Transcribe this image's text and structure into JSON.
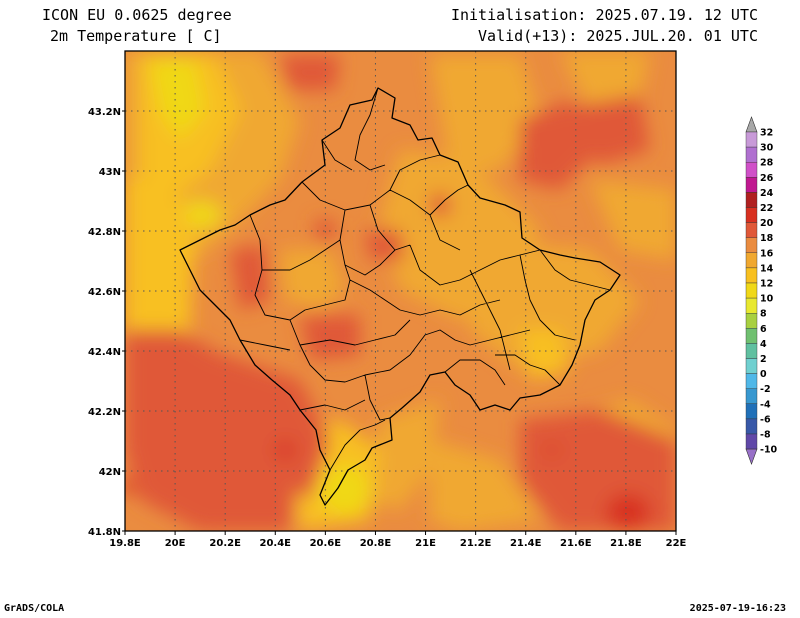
{
  "header": {
    "model": "ICON EU 0.0625 degree",
    "parameter": "2m Temperature [ C]",
    "init": "Initialisation: 2025.07.19. 12 UTC",
    "valid": "Valid(+13): 2025.JUL.20. 01 UTC"
  },
  "footer": {
    "credit": "GrADS/COLA",
    "timestamp": "2025-07-19-16:23"
  },
  "map": {
    "region": "Kosovo",
    "lon_range": [
      19.8,
      22.0
    ],
    "lat_range": [
      41.8,
      43.4
    ],
    "x_ticks": [
      "19.8E",
      "20E",
      "20.2E",
      "20.4E",
      "20.6E",
      "20.8E",
      "21E",
      "21.2E",
      "21.4E",
      "21.6E",
      "21.8E",
      "22E"
    ],
    "y_ticks": [
      "41.8N",
      "42N",
      "42.2N",
      "42.4N",
      "42.6N",
      "42.8N",
      "43N",
      "43.2N"
    ],
    "grid": "dotted"
  },
  "colorbar": {
    "labels": [
      "32",
      "30",
      "28",
      "26",
      "24",
      "22",
      "20",
      "18",
      "16",
      "14",
      "12",
      "10",
      "8",
      "6",
      "4",
      "2",
      "0",
      "-2",
      "-4",
      "-6",
      "-8",
      "-10"
    ],
    "colors": [
      "#c89ad8",
      "#b070d0",
      "#d050c8",
      "#c01890",
      "#b02020",
      "#d83020",
      "#e05838",
      "#ea8c40",
      "#f0a830",
      "#f8c020",
      "#f0d818",
      "#e8e830",
      "#a8d040",
      "#70c070",
      "#60c0a0",
      "#70d0d0",
      "#50b8e8",
      "#3898d0",
      "#2070b8",
      "#3858a8",
      "#6048a8"
    ],
    "top_cap": "#a8a8a8",
    "bottom_cap": "#9870c8"
  }
}
